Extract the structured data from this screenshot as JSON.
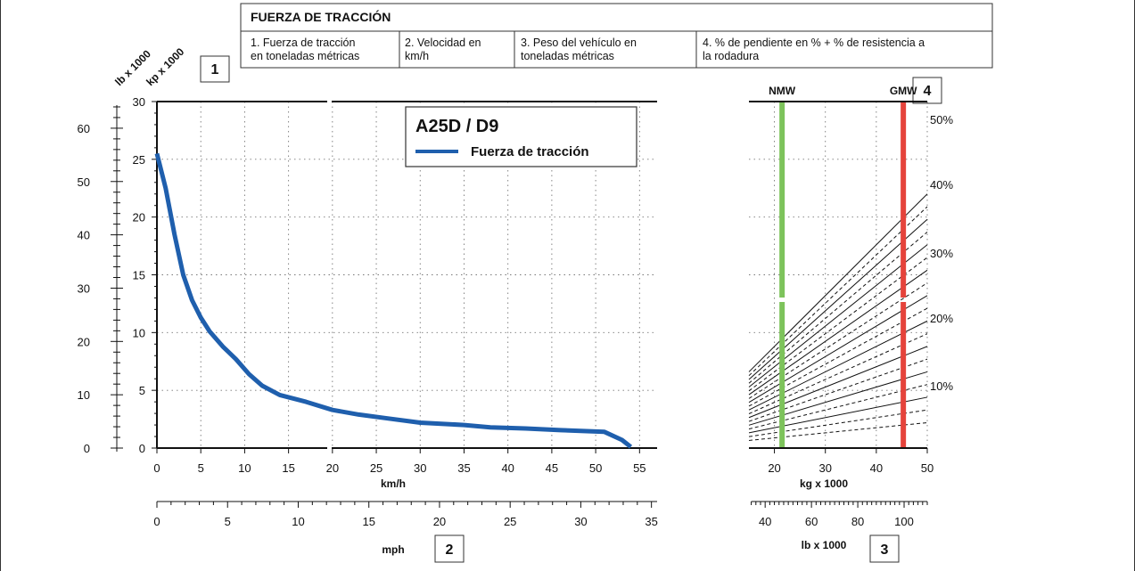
{
  "header": {
    "title": "FUERZA DE TRACCIÓN",
    "items": [
      {
        "lines": [
          "1. Fuerza de tracción",
          "en toneladas métricas"
        ]
      },
      {
        "lines": [
          "2. Velocidad en",
          "km/h"
        ]
      },
      {
        "lines": [
          "3. Peso del vehículo en",
          "toneladas métricas"
        ]
      },
      {
        "lines": [
          "4. % de pendiente en % + % de resistencia a",
          "la rodadura"
        ]
      }
    ]
  },
  "callouts": [
    "1",
    "2",
    "3",
    "4"
  ],
  "colors": {
    "series": "#1f5fad",
    "nmw": "#7dc35b",
    "gmw": "#e5433b",
    "frame": "#333333"
  },
  "chart_data": [
    {
      "type": "line",
      "legend": {
        "title": "A25D / D9",
        "entries": [
          "Fuerza de tracción"
        ],
        "placement": "top-right"
      },
      "left_axes": [
        {
          "title": "lb x 1000",
          "range": [
            0,
            65
          ],
          "ticks": [
            0,
            10,
            20,
            30,
            40,
            50,
            60
          ]
        },
        {
          "title": "kp x 1000",
          "range": [
            0,
            30
          ],
          "ticks": [
            0,
            5,
            10,
            15,
            20,
            25,
            30
          ]
        }
      ],
      "x_axis_primary": {
        "title": "km/h",
        "range": [
          0,
          57
        ],
        "ticks": [
          0,
          5,
          10,
          15,
          20,
          25,
          30,
          35,
          40,
          45,
          50,
          55
        ]
      },
      "x_axis_secondary": {
        "title": "mph",
        "range": [
          0,
          35.4
        ],
        "ticks": [
          0,
          5,
          10,
          15,
          20,
          25,
          30,
          35
        ]
      },
      "grid": true,
      "series": [
        {
          "name": "Fuerza de tracción",
          "x": [
            0,
            1,
            2,
            3,
            4,
            5,
            6,
            7.5,
            9,
            10.5,
            12,
            14,
            17,
            20,
            23,
            26,
            30,
            35,
            38,
            42,
            46,
            51,
            53,
            54
          ],
          "y": [
            25.5,
            22.5,
            18.5,
            15,
            12.8,
            11.3,
            10.1,
            8.8,
            7.7,
            6.4,
            5.4,
            4.6,
            4.0,
            3.3,
            2.9,
            2.6,
            2.2,
            2.0,
            1.8,
            1.7,
            1.55,
            1.4,
            0.7,
            0.1
          ]
        }
      ]
    },
    {
      "type": "line",
      "x_axis_primary": {
        "title": "kg x 1000",
        "range": [
          15,
          50
        ],
        "ticks": [
          20,
          30,
          40,
          50
        ]
      },
      "x_axis_secondary": {
        "title": "lb x 1000",
        "range": [
          33,
          110
        ],
        "ticks": [
          40,
          60,
          80,
          100
        ]
      },
      "markers": [
        {
          "label": "NMW",
          "x": 21.5
        },
        {
          "label": "GMW",
          "x": 45.3
        }
      ],
      "grade_labels": [
        "50%",
        "40%",
        "30%",
        "20%",
        "10%"
      ],
      "grades_solid": [
        50,
        45,
        40,
        35,
        30,
        25,
        20,
        15,
        10
      ],
      "grades_dashed": [
        47.5,
        42.5,
        37.5,
        32.5,
        27.5,
        22.5,
        17.5,
        12.5,
        7.5,
        5
      ],
      "grid": true
    }
  ]
}
